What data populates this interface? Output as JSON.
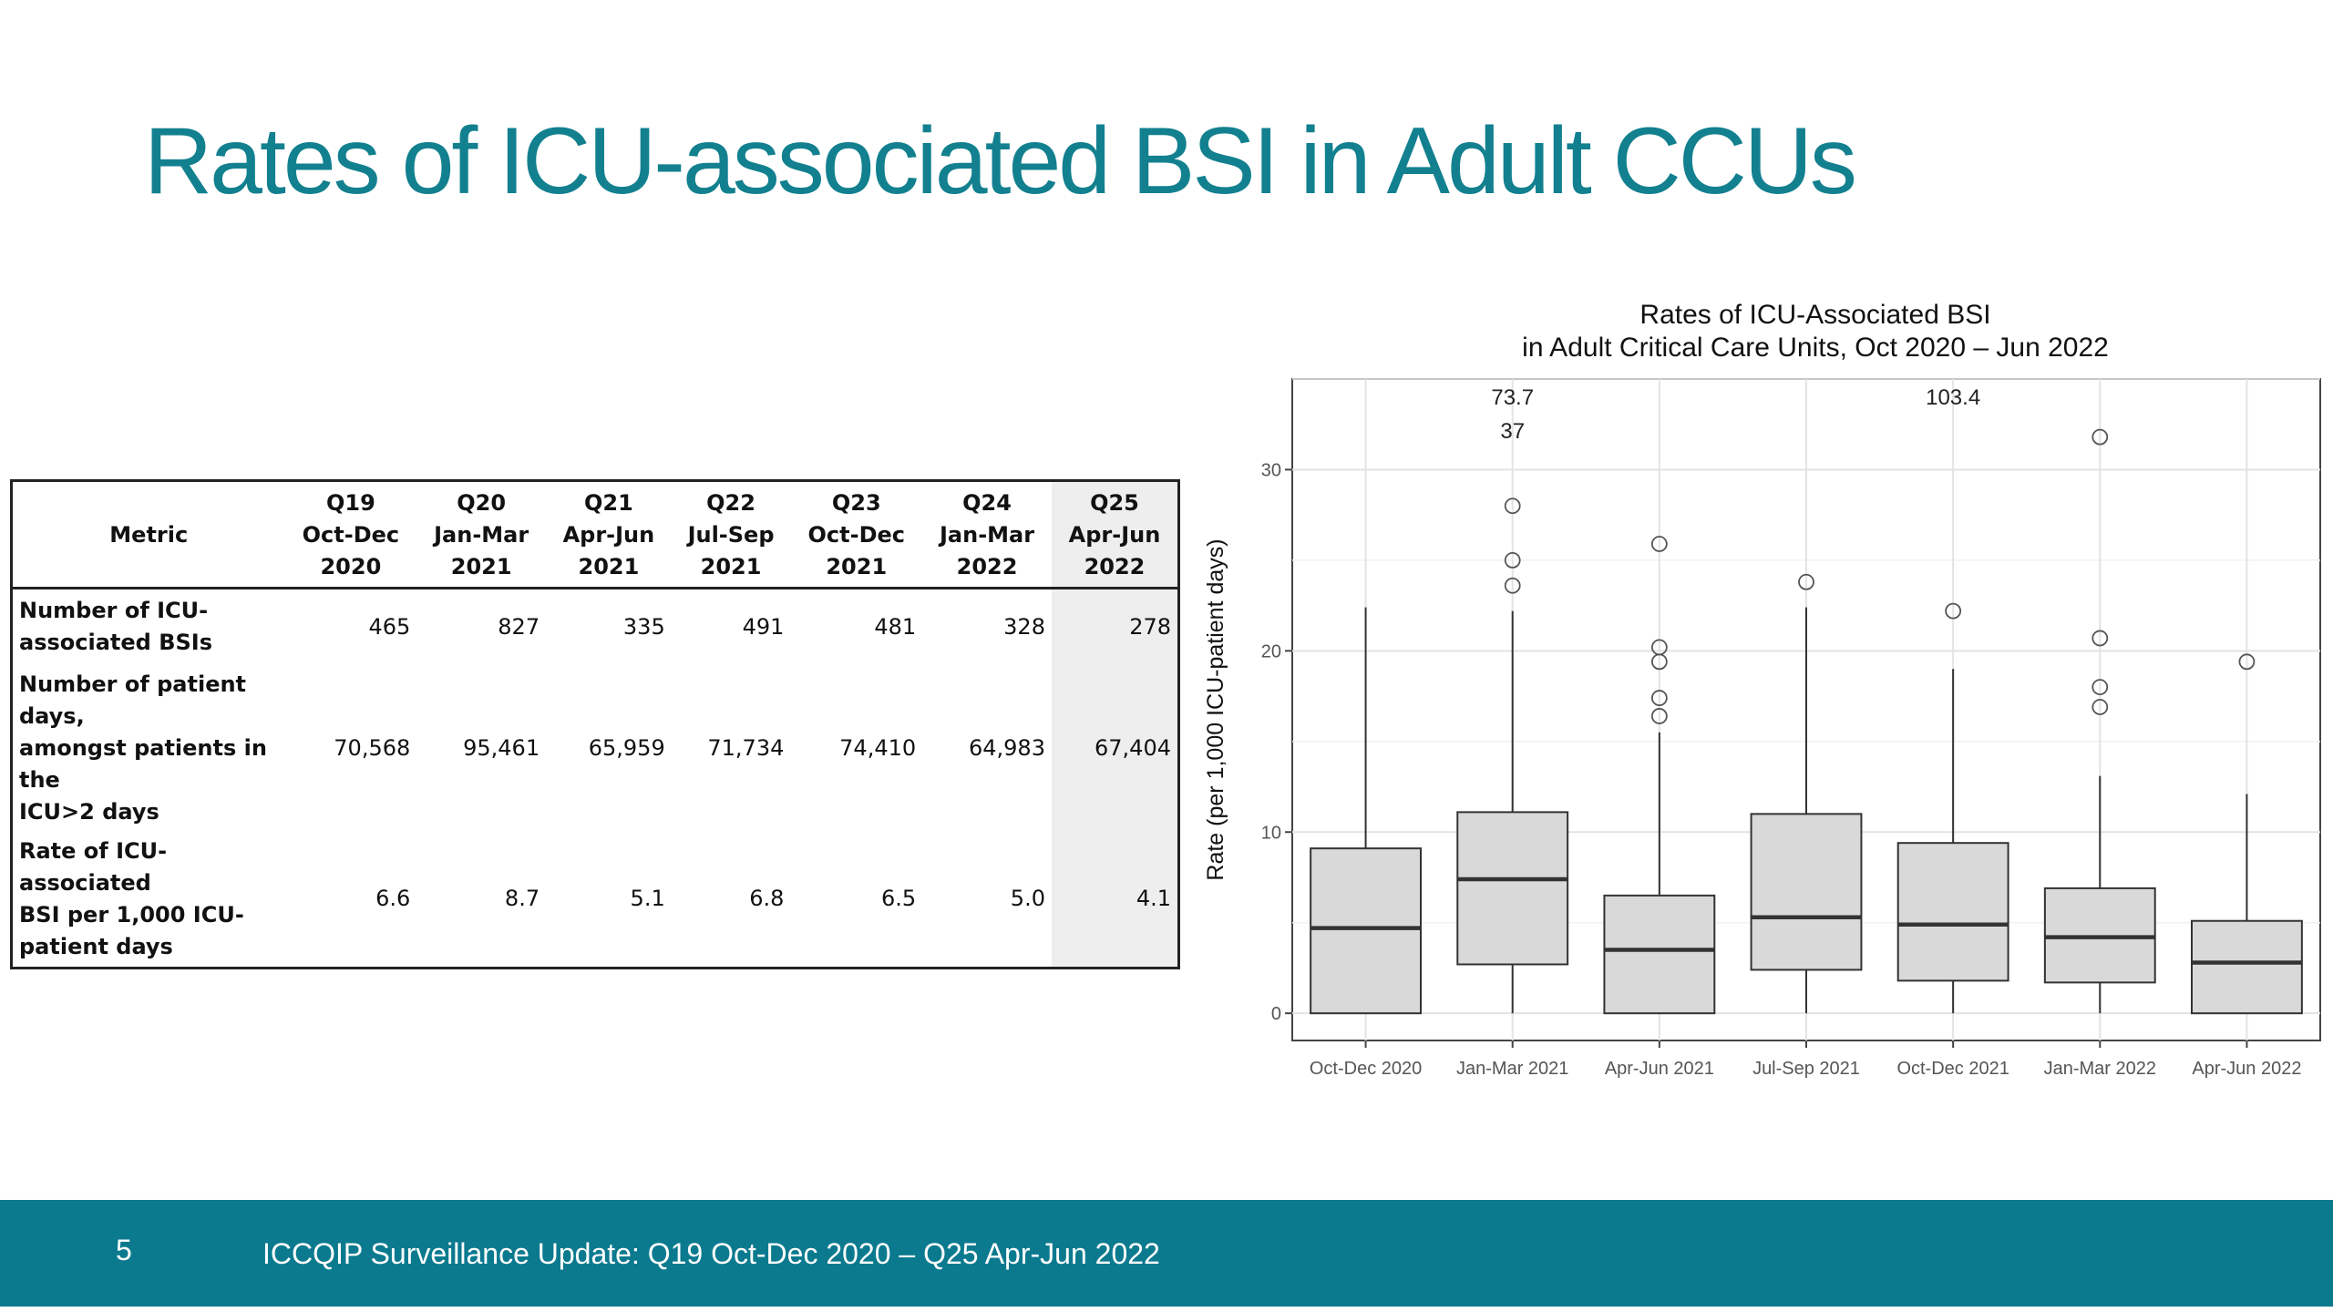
{
  "slide": {
    "title": "Rates of ICU-associated BSI in Adult CCUs",
    "page_number": "5",
    "footer_text": "ICCQIP Surveillance Update: Q19 Oct-Dec 2020 – Q25 Apr-Jun 2022",
    "colors": {
      "title": "#12808f",
      "footer_bg": "#0b7a8f",
      "highlight_column": "#eeeeee",
      "box_fill": "#d9d9d9"
    }
  },
  "table": {
    "header": {
      "metric": "Metric",
      "columns": [
        {
          "q": "Q19",
          "months": "Oct-Dec",
          "year": "2020"
        },
        {
          "q": "Q20",
          "months": "Jan-Mar",
          "year": "2021"
        },
        {
          "q": "Q21",
          "months": "Apr-Jun",
          "year": "2021"
        },
        {
          "q": "Q22",
          "months": "Jul-Sep",
          "year": "2021"
        },
        {
          "q": "Q23",
          "months": "Oct-Dec",
          "year": "2021"
        },
        {
          "q": "Q24",
          "months": "Jan-Mar",
          "year": "2022"
        },
        {
          "q": "Q25",
          "months": "Apr-Jun",
          "year": "2022"
        }
      ]
    },
    "rows": [
      {
        "label_lines": [
          "Number of ICU-",
          "associated BSIs"
        ],
        "values": [
          "465",
          "827",
          "335",
          "491",
          "481",
          "328",
          "278"
        ]
      },
      {
        "label_lines": [
          "Number of patient days,",
          "amongst patients in the",
          "ICU>2 days"
        ],
        "values": [
          "70,568",
          "95,461",
          "65,959",
          "71,734",
          "74,410",
          "64,983",
          "67,404"
        ]
      },
      {
        "label_lines": [
          "Rate of ICU-associated",
          "BSI per 1,000 ICU-",
          "patient days"
        ],
        "values": [
          "6.6",
          "8.7",
          "5.1",
          "6.8",
          "6.5",
          "5.0",
          "4.1"
        ]
      }
    ]
  },
  "chart_data": {
    "type": "boxplot",
    "title_lines": [
      "Rates of ICU-Associated BSI",
      "in Adult Critical Care Units, Oct 2020 – Jun 2022"
    ],
    "xlabel": "",
    "ylabel": "Rate (per 1,000 ICU-patient days)",
    "ylim": [
      -1.5,
      35
    ],
    "yticks": [
      0,
      10,
      20,
      30
    ],
    "grid": true,
    "categories": [
      "Oct-Dec 2020",
      "Jan-Mar 2021",
      "Apr-Jun 2021",
      "Jul-Sep 2021",
      "Oct-Dec 2021",
      "Jan-Mar 2022",
      "Apr-Jun 2022"
    ],
    "boxes": [
      {
        "min": 0,
        "q1": 0,
        "median": 4.7,
        "q3": 9.1,
        "max": 22.4,
        "outliers": []
      },
      {
        "min": 0,
        "q1": 2.7,
        "median": 7.4,
        "q3": 11.1,
        "max": 22.2,
        "outliers": [
          23.6,
          25.0,
          28.0
        ]
      },
      {
        "min": 0,
        "q1": 0,
        "median": 3.5,
        "q3": 6.5,
        "max": 15.5,
        "outliers": [
          16.4,
          17.4,
          19.4,
          20.2,
          25.9
        ]
      },
      {
        "min": 0,
        "q1": 2.4,
        "median": 5.3,
        "q3": 11.0,
        "max": 22.4,
        "outliers": [
          23.8
        ]
      },
      {
        "min": 0,
        "q1": 1.8,
        "median": 4.9,
        "q3": 9.4,
        "max": 19.0,
        "outliers": [
          22.2
        ]
      },
      {
        "min": 0,
        "q1": 1.7,
        "median": 4.2,
        "q3": 6.9,
        "max": 13.1,
        "outliers": [
          16.9,
          18.0,
          20.7,
          31.8
        ]
      },
      {
        "min": 0,
        "q1": 0,
        "median": 2.8,
        "q3": 5.1,
        "max": 12.1,
        "outliers": [
          19.4
        ]
      }
    ],
    "off_scale_labels": [
      {
        "category": "Jan-Mar 2021",
        "lines": [
          "73.7",
          "37"
        ]
      },
      {
        "category": "Oct-Dec 2021",
        "lines": [
          "103.4"
        ]
      }
    ]
  }
}
